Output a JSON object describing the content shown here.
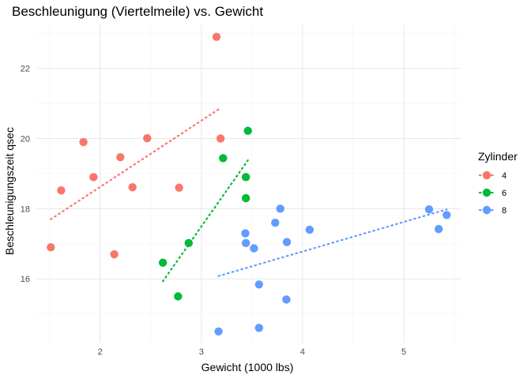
{
  "chart_data": {
    "type": "scatter",
    "title": "Beschleunigung (Viertelmeile) vs. Gewicht",
    "xlabel": "Gewicht (1000 lbs)",
    "ylabel": "Beschleunigungszeit qsec",
    "xlim": [
      1.37,
      5.57
    ],
    "ylim": [
      14.18,
      23.23
    ],
    "x_ticks": [
      2,
      3,
      4,
      5
    ],
    "y_ticks": [
      16,
      18,
      20,
      22
    ],
    "grid": true,
    "legend": {
      "title": "Zylinder",
      "placement": "right"
    },
    "series": [
      {
        "name": "4",
        "color": "#F8766D",
        "x": [
          2.32,
          3.19,
          3.15,
          2.2,
          1.615,
          1.835,
          2.465,
          1.935,
          2.14,
          1.513,
          2.78
        ],
        "y": [
          18.61,
          20.0,
          22.9,
          19.47,
          18.52,
          19.9,
          20.01,
          18.9,
          16.7,
          16.9,
          18.6
        ],
        "trend": {
          "x": [
            1.513,
            3.19
          ],
          "y": [
            17.7,
            20.87
          ]
        }
      },
      {
        "name": "6",
        "color": "#00BA38",
        "x": [
          2.62,
          2.875,
          3.215,
          3.46,
          3.44,
          3.44,
          2.77
        ],
        "y": [
          16.46,
          17.02,
          19.44,
          20.22,
          18.3,
          18.9,
          15.5
        ],
        "trend": {
          "x": [
            2.62,
            3.46
          ],
          "y": [
            15.93,
            19.38
          ]
        }
      },
      {
        "name": "8",
        "color": "#619CFF",
        "x": [
          3.44,
          3.57,
          4.07,
          3.73,
          3.78,
          5.25,
          5.424,
          5.345,
          3.52,
          3.435,
          3.84,
          3.845,
          3.17,
          3.57
        ],
        "y": [
          17.02,
          15.84,
          17.4,
          17.6,
          18.0,
          17.98,
          17.82,
          17.42,
          16.87,
          17.3,
          15.41,
          17.05,
          14.5,
          14.6
        ],
        "trend": {
          "x": [
            3.17,
            5.424
          ],
          "y": [
            16.08,
            17.98
          ]
        }
      }
    ]
  }
}
